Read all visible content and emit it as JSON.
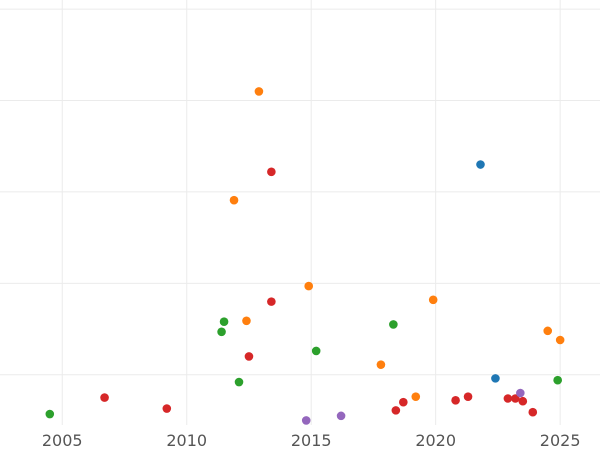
{
  "chart_data": {
    "type": "scatter",
    "title": "",
    "xlabel": "",
    "ylabel": "",
    "xlim": [
      2002.5,
      2026.6
    ],
    "ylim": [
      -0.55,
      4.1
    ],
    "x_ticks": [
      2005,
      2010,
      2015,
      2020,
      2025
    ],
    "x_tick_labels": [
      "2005",
      "2010",
      "2015",
      "2020",
      "2025"
    ],
    "y_gridlines": [
      0,
      1,
      2,
      3,
      4
    ],
    "grid": true,
    "legend": "none",
    "series": [
      {
        "color": "#1f77b4",
        "points": [
          {
            "x": 2021.8,
            "y": 2.3
          },
          {
            "x": 2022.4,
            "y": -0.04
          }
        ]
      },
      {
        "color": "#ff7f0e",
        "points": [
          {
            "x": 2012.9,
            "y": 3.1
          },
          {
            "x": 2011.9,
            "y": 1.91
          },
          {
            "x": 2014.9,
            "y": 0.97
          },
          {
            "x": 2012.4,
            "y": 0.59
          },
          {
            "x": 2017.8,
            "y": 0.11
          },
          {
            "x": 2019.9,
            "y": 0.82
          },
          {
            "x": 2019.2,
            "y": -0.24
          },
          {
            "x": 2024.5,
            "y": 0.48
          },
          {
            "x": 2025.0,
            "y": 0.38
          }
        ]
      },
      {
        "color": "#2ca02c",
        "points": [
          {
            "x": 2004.5,
            "y": -0.43
          },
          {
            "x": 2011.4,
            "y": 0.47
          },
          {
            "x": 2011.5,
            "y": 0.58
          },
          {
            "x": 2012.1,
            "y": -0.08
          },
          {
            "x": 2015.2,
            "y": 0.26
          },
          {
            "x": 2018.3,
            "y": 0.55
          },
          {
            "x": 2024.9,
            "y": -0.06
          }
        ]
      },
      {
        "color": "#d62728",
        "points": [
          {
            "x": 2006.7,
            "y": -0.25
          },
          {
            "x": 2009.2,
            "y": -0.37
          },
          {
            "x": 2012.5,
            "y": 0.2
          },
          {
            "x": 2013.4,
            "y": 2.22
          },
          {
            "x": 2013.4,
            "y": 0.8
          },
          {
            "x": 2018.4,
            "y": -0.39
          },
          {
            "x": 2018.7,
            "y": -0.3
          },
          {
            "x": 2020.8,
            "y": -0.28
          },
          {
            "x": 2021.3,
            "y": -0.24
          },
          {
            "x": 2022.9,
            "y": -0.26
          },
          {
            "x": 2023.2,
            "y": -0.26
          },
          {
            "x": 2023.5,
            "y": -0.29
          },
          {
            "x": 2023.9,
            "y": -0.41
          }
        ]
      },
      {
        "color": "#9467bd",
        "points": [
          {
            "x": 2014.8,
            "y": -0.5
          },
          {
            "x": 2016.2,
            "y": -0.45
          },
          {
            "x": 2023.4,
            "y": -0.2
          }
        ]
      }
    ]
  }
}
